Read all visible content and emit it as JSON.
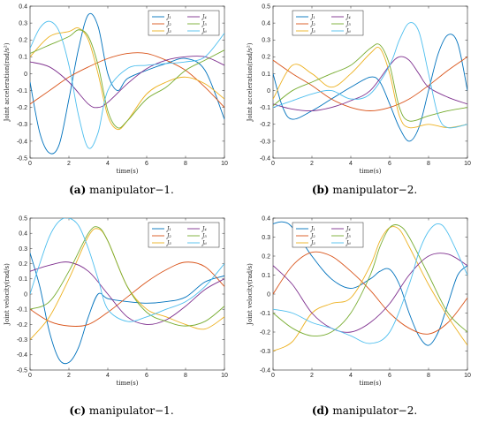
{
  "chart_data": [
    {
      "id": "a",
      "type": "line",
      "caption_label": "(a)",
      "caption_text": "manipulator−1.",
      "xlabel": "time(s)",
      "ylabel": "Joint acceleration(rad/s²)",
      "xlim": [
        0,
        10
      ],
      "ylim": [
        -0.5,
        0.4
      ],
      "xticks": [
        0,
        2,
        4,
        6,
        8,
        10
      ],
      "yticks": [
        -0.5,
        -0.4,
        -0.3,
        -0.2,
        -0.1,
        0,
        0.1,
        0.2,
        0.3,
        0.4
      ],
      "legend_position": "top-right",
      "series": [
        {
          "name": "J₁",
          "color": "#0072BD",
          "x": [
            0,
            0.5,
            1,
            1.5,
            2,
            2.5,
            3,
            3.5,
            4,
            4.5,
            5,
            6,
            7,
            8,
            9,
            10
          ],
          "y": [
            -0.05,
            -0.35,
            -0.47,
            -0.42,
            -0.15,
            0.15,
            0.35,
            0.28,
            0.0,
            -0.1,
            -0.03,
            0.02,
            0.06,
            0.09,
            0.02,
            -0.27
          ]
        },
        {
          "name": "J₂",
          "color": "#D95319",
          "x": [
            0,
            1,
            2,
            3,
            4,
            5,
            6,
            7,
            8,
            9,
            10
          ],
          "y": [
            -0.18,
            -0.1,
            -0.02,
            0.04,
            0.09,
            0.12,
            0.12,
            0.08,
            0.02,
            -0.08,
            -0.2
          ]
        },
        {
          "name": "J₃",
          "color": "#EDB120",
          "x": [
            0,
            1,
            2,
            2.5,
            3,
            3.5,
            4,
            4.5,
            5,
            6,
            7,
            8,
            9,
            10
          ],
          "y": [
            0.1,
            0.22,
            0.25,
            0.27,
            0.2,
            0.0,
            -0.25,
            -0.33,
            -0.28,
            -0.12,
            -0.05,
            -0.02,
            -0.06,
            -0.15
          ]
        },
        {
          "name": "J₄",
          "color": "#7E2F8E",
          "x": [
            0,
            1,
            2,
            3,
            3.5,
            4,
            5,
            6,
            7,
            8,
            9,
            10
          ],
          "y": [
            0.07,
            0.04,
            -0.05,
            -0.18,
            -0.2,
            -0.17,
            -0.06,
            0.03,
            0.08,
            0.1,
            0.1,
            0.05
          ]
        },
        {
          "name": "J₅",
          "color": "#77AC30",
          "x": [
            0,
            1,
            2,
            2.5,
            3,
            3.5,
            4,
            4.5,
            5,
            6,
            7,
            8,
            9,
            10
          ],
          "y": [
            0.12,
            0.17,
            0.22,
            0.26,
            0.22,
            0.05,
            -0.22,
            -0.32,
            -0.28,
            -0.15,
            -0.08,
            0.02,
            0.08,
            0.14
          ]
        },
        {
          "name": "J₆",
          "color": "#4DBEEE",
          "x": [
            0,
            0.5,
            1,
            1.5,
            2,
            2.5,
            3,
            3.5,
            4,
            5,
            6,
            7,
            8,
            9,
            10
          ],
          "y": [
            0.15,
            0.27,
            0.31,
            0.25,
            0.05,
            -0.25,
            -0.44,
            -0.35,
            -0.1,
            0.03,
            0.05,
            0.06,
            0.07,
            0.1,
            0.24
          ]
        }
      ]
    },
    {
      "id": "b",
      "type": "line",
      "caption_label": "(b)",
      "caption_text": "manipulator−2.",
      "xlabel": "time(s)",
      "ylabel": "Joint acceleration(rad/s²)",
      "xlim": [
        0,
        10
      ],
      "ylim": [
        -0.4,
        0.5
      ],
      "xticks": [
        0,
        2,
        4,
        6,
        8,
        10
      ],
      "yticks": [
        -0.4,
        -0.3,
        -0.2,
        -0.1,
        0,
        0.1,
        0.2,
        0.3,
        0.4,
        0.5
      ],
      "legend_position": "top-left",
      "series": [
        {
          "name": "J₁",
          "color": "#0072BD",
          "x": [
            0,
            0.5,
            1,
            2,
            3,
            4,
            5,
            5.5,
            6,
            6.5,
            7,
            7.5,
            8,
            8.5,
            9,
            9.5,
            10
          ],
          "y": [
            0.1,
            -0.1,
            -0.17,
            -0.12,
            -0.05,
            0.02,
            0.08,
            0.05,
            -0.08,
            -0.22,
            -0.3,
            -0.22,
            0.0,
            0.22,
            0.33,
            0.28,
            0.0
          ]
        },
        {
          "name": "J₂",
          "color": "#D95319",
          "x": [
            0,
            1,
            2,
            3,
            4,
            5,
            6,
            7,
            8,
            9,
            10
          ],
          "y": [
            0.18,
            0.1,
            0.03,
            -0.05,
            -0.1,
            -0.12,
            -0.1,
            -0.05,
            0.03,
            0.12,
            0.2
          ]
        },
        {
          "name": "J₃",
          "color": "#EDB120",
          "x": [
            0,
            1,
            2,
            3,
            4,
            5,
            5.5,
            6,
            6.5,
            7,
            8,
            9,
            10
          ],
          "y": [
            -0.05,
            0.15,
            0.1,
            0.02,
            0.1,
            0.22,
            0.25,
            0.1,
            -0.15,
            -0.22,
            -0.2,
            -0.22,
            -0.2
          ]
        },
        {
          "name": "J₄",
          "color": "#7E2F8E",
          "x": [
            0,
            1,
            2,
            3,
            4,
            5,
            6,
            6.5,
            7,
            7.5,
            8,
            9,
            10
          ],
          "y": [
            -0.08,
            -0.11,
            -0.12,
            -0.1,
            -0.06,
            0.0,
            0.15,
            0.2,
            0.18,
            0.1,
            0.02,
            -0.04,
            -0.08
          ]
        },
        {
          "name": "J₅",
          "color": "#77AC30",
          "x": [
            0,
            1,
            2,
            3,
            4,
            5,
            5.5,
            6,
            6.5,
            7,
            8,
            9,
            10
          ],
          "y": [
            -0.09,
            0.0,
            0.05,
            0.1,
            0.15,
            0.25,
            0.27,
            0.15,
            -0.1,
            -0.18,
            -0.15,
            -0.12,
            -0.1
          ]
        },
        {
          "name": "J₆",
          "color": "#4DBEEE",
          "x": [
            0,
            1,
            2,
            3,
            4,
            5,
            6,
            6.5,
            7,
            7.5,
            8,
            8.5,
            9,
            10
          ],
          "y": [
            -0.1,
            -0.06,
            -0.02,
            0.0,
            -0.05,
            -0.02,
            0.15,
            0.3,
            0.4,
            0.35,
            0.1,
            -0.15,
            -0.22,
            -0.2
          ]
        }
      ]
    },
    {
      "id": "c",
      "type": "line",
      "caption_label": "(c)",
      "caption_text": "manipulator−1.",
      "xlabel": "time(s)",
      "ylabel": "Joint velocity(rad/s)",
      "xlim": [
        0,
        10
      ],
      "ylim": [
        -0.5,
        0.5
      ],
      "xticks": [
        0,
        2,
        4,
        6,
        8,
        10
      ],
      "yticks": [
        -0.5,
        -0.4,
        -0.3,
        -0.2,
        -0.1,
        0,
        0.1,
        0.2,
        0.3,
        0.4,
        0.5
      ],
      "legend_position": "top-right",
      "series": [
        {
          "name": "J₁",
          "color": "#0072BD",
          "x": [
            0,
            0.5,
            1,
            1.5,
            2,
            2.5,
            3,
            3.5,
            4,
            5,
            6,
            7,
            8,
            9,
            10
          ],
          "y": [
            0.27,
            0.05,
            -0.25,
            -0.43,
            -0.45,
            -0.35,
            -0.15,
            0.0,
            -0.03,
            -0.05,
            -0.06,
            -0.05,
            -0.02,
            0.08,
            0.12
          ]
        },
        {
          "name": "J₂",
          "color": "#D95319",
          "x": [
            0,
            1,
            2,
            3,
            4,
            5,
            6,
            7,
            8,
            9,
            10
          ],
          "y": [
            -0.1,
            -0.18,
            -0.21,
            -0.2,
            -0.12,
            -0.02,
            0.08,
            0.16,
            0.21,
            0.18,
            0.05
          ]
        },
        {
          "name": "J₃",
          "color": "#EDB120",
          "x": [
            0,
            1,
            2,
            3,
            3.5,
            4,
            5,
            6,
            7,
            8,
            9,
            10
          ],
          "y": [
            -0.3,
            -0.15,
            0.1,
            0.38,
            0.43,
            0.35,
            0.05,
            -0.1,
            -0.15,
            -0.2,
            -0.23,
            -0.15
          ]
        },
        {
          "name": "J₄",
          "color": "#7E2F8E",
          "x": [
            0,
            1,
            2,
            3,
            4,
            5,
            6,
            7,
            8,
            9,
            10
          ],
          "y": [
            0.15,
            0.19,
            0.21,
            0.15,
            0.0,
            -0.15,
            -0.2,
            -0.17,
            -0.08,
            0.03,
            0.1
          ]
        },
        {
          "name": "J₅",
          "color": "#77AC30",
          "x": [
            0,
            1,
            2,
            3,
            3.5,
            4,
            5,
            6,
            7,
            8,
            9,
            10
          ],
          "y": [
            -0.1,
            -0.05,
            0.15,
            0.4,
            0.44,
            0.35,
            0.05,
            -0.12,
            -0.18,
            -0.21,
            -0.18,
            -0.08
          ]
        },
        {
          "name": "J₆",
          "color": "#4DBEEE",
          "x": [
            0,
            0.5,
            1,
            1.5,
            2,
            2.5,
            3,
            3.5,
            4,
            5,
            6,
            7,
            8,
            9,
            10
          ],
          "y": [
            0.0,
            0.2,
            0.38,
            0.48,
            0.5,
            0.45,
            0.3,
            0.1,
            -0.1,
            -0.18,
            -0.15,
            -0.1,
            -0.05,
            0.05,
            0.2
          ]
        }
      ]
    },
    {
      "id": "d",
      "type": "line",
      "caption_label": "(d)",
      "caption_text": "manipulator−2.",
      "xlabel": "time(s)",
      "ylabel": "Joint velocity(rad/s)",
      "xlim": [
        0,
        10
      ],
      "ylim": [
        -0.4,
        0.4
      ],
      "xticks": [
        0,
        2,
        4,
        6,
        8,
        10
      ],
      "yticks": [
        -0.4,
        -0.3,
        -0.2,
        -0.1,
        0,
        0.1,
        0.2,
        0.3,
        0.4
      ],
      "legend_position": "top-left",
      "series": [
        {
          "name": "J₁",
          "color": "#0072BD",
          "x": [
            0,
            0.5,
            1,
            2,
            3,
            4,
            5,
            5.5,
            6,
            6.5,
            7,
            7.5,
            8,
            8.5,
            9,
            9.5,
            10
          ],
          "y": [
            0.37,
            0.38,
            0.35,
            0.2,
            0.08,
            0.03,
            0.08,
            0.12,
            0.13,
            0.05,
            -0.1,
            -0.22,
            -0.27,
            -0.2,
            -0.05,
            0.1,
            0.15
          ]
        },
        {
          "name": "J₂",
          "color": "#D95319",
          "x": [
            0,
            1,
            2,
            3,
            4,
            5,
            6,
            7,
            8,
            9,
            10
          ],
          "y": [
            0.0,
            0.15,
            0.22,
            0.2,
            0.12,
            0.02,
            -0.1,
            -0.18,
            -0.21,
            -0.15,
            -0.02
          ]
        },
        {
          "name": "J₃",
          "color": "#EDB120",
          "x": [
            0,
            1,
            2,
            3,
            4,
            5,
            5.5,
            6,
            6.5,
            7,
            8,
            9,
            10
          ],
          "y": [
            -0.3,
            -0.25,
            -0.1,
            -0.05,
            -0.02,
            0.15,
            0.28,
            0.35,
            0.34,
            0.25,
            0.05,
            -0.12,
            -0.27
          ]
        },
        {
          "name": "J₄",
          "color": "#7E2F8E",
          "x": [
            0,
            1,
            2,
            3,
            4,
            5,
            6,
            7,
            8,
            9,
            10
          ],
          "y": [
            0.15,
            0.05,
            -0.1,
            -0.18,
            -0.2,
            -0.15,
            -0.05,
            0.1,
            0.2,
            0.21,
            0.15
          ]
        },
        {
          "name": "J₅",
          "color": "#77AC30",
          "x": [
            0,
            1,
            2,
            3,
            4,
            5,
            5.5,
            6,
            6.5,
            7,
            8,
            9,
            10
          ],
          "y": [
            -0.1,
            -0.18,
            -0.22,
            -0.2,
            -0.1,
            0.1,
            0.25,
            0.35,
            0.36,
            0.3,
            0.1,
            -0.1,
            -0.2
          ]
        },
        {
          "name": "J₆",
          "color": "#4DBEEE",
          "x": [
            0,
            1,
            2,
            3,
            4,
            5,
            6,
            7,
            7.5,
            8,
            8.5,
            9,
            10
          ],
          "y": [
            -0.08,
            -0.1,
            -0.15,
            -0.18,
            -0.22,
            -0.26,
            -0.2,
            0.05,
            0.22,
            0.33,
            0.37,
            0.32,
            0.1
          ]
        }
      ]
    }
  ]
}
